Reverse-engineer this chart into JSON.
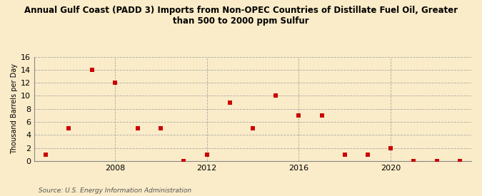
{
  "title": "Annual Gulf Coast (PADD 3) Imports from Non-OPEC Countries of Distillate Fuel Oil, Greater\nthan 500 to 2000 ppm Sulfur",
  "ylabel": "Thousand Barrels per Day",
  "source": "Source: U.S. Energy Information Administration",
  "background_color": "#faecc8",
  "plot_bg_color": "#faecc8",
  "marker_color": "#cc0000",
  "marker": "s",
  "marker_size": 4,
  "xlim": [
    2004.5,
    2023.5
  ],
  "ylim": [
    0,
    16
  ],
  "yticks": [
    0,
    2,
    4,
    6,
    8,
    10,
    12,
    14,
    16
  ],
  "xticks": [
    2008,
    2012,
    2016,
    2020
  ],
  "years": [
    2005,
    2006,
    2007,
    2008,
    2009,
    2010,
    2011,
    2012,
    2013,
    2014,
    2015,
    2016,
    2017,
    2018,
    2019,
    2020,
    2021,
    2022,
    2023
  ],
  "values": [
    1,
    5,
    14,
    12,
    5,
    5,
    0,
    1,
    9,
    5,
    10,
    7,
    7,
    1,
    1,
    2,
    0,
    0,
    0
  ]
}
